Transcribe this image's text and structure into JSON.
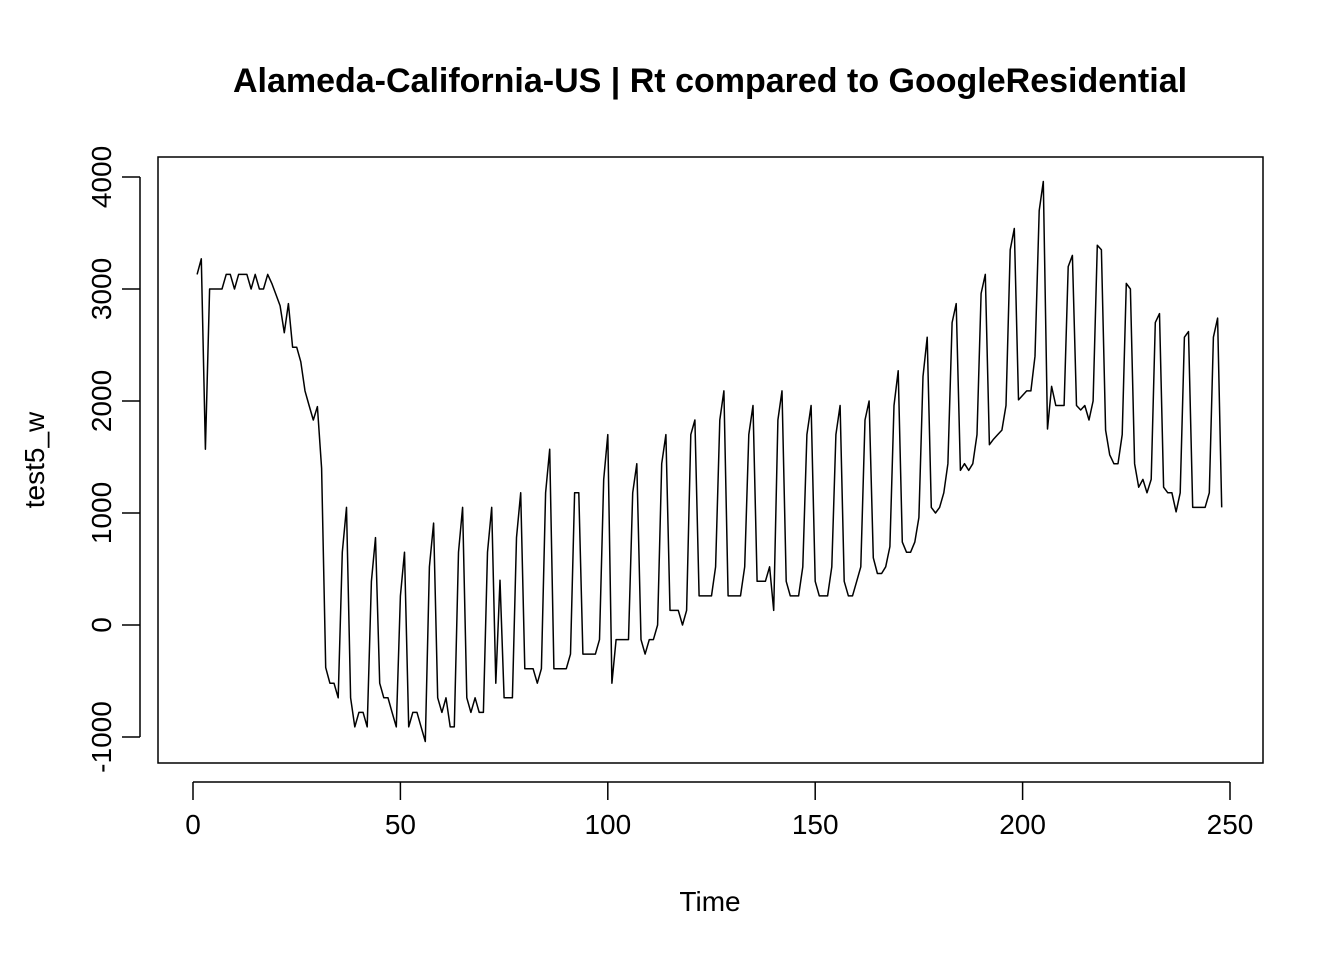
{
  "chart_data": {
    "type": "line",
    "title": "Alameda-California-US | Rt compared to GoogleResidential",
    "xlabel": "Time",
    "ylabel": "test5_w",
    "xlim": [
      0,
      250
    ],
    "ylim": [
      -1000,
      4000
    ],
    "xticks": [
      0,
      50,
      100,
      150,
      200,
      250
    ],
    "yticks": [
      -1000,
      0,
      1000,
      2000,
      3000,
      4000
    ],
    "xtick_labels": [
      "0",
      "50",
      "100",
      "150",
      "200",
      "250"
    ],
    "ytick_labels": [
      "-1000",
      "0",
      "1000",
      "2000",
      "3000",
      "4000"
    ],
    "grid": false,
    "line_color": "#000000",
    "series": [
      {
        "x": [
          1,
          2,
          3,
          4,
          5,
          6,
          7,
          8,
          9,
          10,
          11,
          12,
          13,
          14,
          15,
          16,
          17,
          18,
          19,
          20,
          21,
          22,
          23,
          24,
          25,
          26,
          27,
          28,
          29,
          30,
          31,
          32,
          33,
          34,
          35,
          36,
          37,
          38,
          39,
          40,
          41,
          42,
          43,
          44,
          45,
          46,
          47,
          48,
          49,
          50,
          51,
          52,
          53,
          54,
          55,
          56,
          57,
          58,
          59,
          60,
          61,
          62,
          63,
          64,
          65,
          66,
          67,
          68,
          69,
          70,
          71,
          72,
          73,
          74,
          75,
          76,
          77,
          78,
          79,
          80,
          81,
          82,
          83,
          84,
          85,
          86,
          87,
          88,
          89,
          90,
          91,
          92,
          93,
          94,
          95,
          96,
          97,
          98,
          99,
          100,
          101,
          102,
          103,
          104,
          105,
          106,
          107,
          108,
          109,
          110,
          111,
          112,
          113,
          114,
          115,
          116,
          117,
          118,
          119,
          120,
          121,
          122,
          123,
          124,
          125,
          126,
          127,
          128,
          129,
          130,
          131,
          132,
          133,
          134,
          135,
          136,
          137,
          138,
          139,
          140,
          141,
          142,
          143,
          144,
          145,
          146,
          147,
          148,
          149,
          150,
          151,
          152,
          153,
          154,
          155,
          156,
          157,
          158,
          159,
          160,
          161,
          162,
          163,
          164,
          165,
          166,
          167,
          168,
          169,
          170,
          171,
          172,
          173,
          174,
          175,
          176,
          177,
          178,
          179,
          180,
          181,
          182,
          183,
          184,
          185,
          186,
          187,
          188,
          189,
          190,
          191,
          192,
          193,
          194,
          195,
          196,
          197,
          198,
          199,
          200,
          201,
          202,
          203,
          204,
          205,
          206,
          207,
          208,
          209,
          210,
          211,
          212,
          213,
          214,
          215,
          216,
          217,
          218,
          219,
          220,
          221,
          222,
          223,
          224,
          225,
          226,
          227,
          228,
          229,
          230,
          231,
          232,
          233,
          234,
          235,
          236,
          237,
          238,
          239,
          240,
          241,
          242,
          243,
          244,
          245,
          246,
          247,
          248
        ],
        "values": [
          3130,
          3270,
          1570,
          3000,
          3000,
          3000,
          3000,
          3130,
          3130,
          3000,
          3130,
          3130,
          3130,
          3000,
          3130,
          3000,
          3000,
          3130,
          3050,
          2950,
          2850,
          2610,
          2870,
          2480,
          2480,
          2350,
          2090,
          1960,
          1830,
          1950,
          1400,
          -380,
          -520,
          -520,
          -650,
          650,
          1050,
          -650,
          -910,
          -780,
          -780,
          -910,
          390,
          780,
          -520,
          -650,
          -650,
          -780,
          -910,
          260,
          650,
          -910,
          -780,
          -780,
          -910,
          -1040,
          520,
          910,
          -650,
          -780,
          -650,
          -910,
          -910,
          650,
          1050,
          -650,
          -780,
          -650,
          -780,
          -780,
          650,
          1050,
          -520,
          400,
          -650,
          -650,
          -650,
          780,
          1180,
          -390,
          -390,
          -390,
          -520,
          -390,
          1180,
          1570,
          -390,
          -390,
          -390,
          -390,
          -260,
          1180,
          1180,
          -260,
          -260,
          -260,
          -260,
          -130,
          1300,
          1700,
          -520,
          -130,
          -130,
          -130,
          -130,
          1180,
          1440,
          -130,
          -260,
          -130,
          -130,
          0,
          1440,
          1700,
          130,
          130,
          130,
          0,
          130,
          1700,
          1830,
          260,
          260,
          260,
          260,
          520,
          1830,
          2090,
          260,
          260,
          260,
          260,
          520,
          1700,
          1960,
          390,
          390,
          390,
          520,
          130,
          1830,
          2090,
          390,
          260,
          260,
          260,
          520,
          1700,
          1960,
          390,
          260,
          260,
          260,
          520,
          1700,
          1960,
          390,
          260,
          260,
          390,
          520,
          1830,
          2000,
          600,
          460,
          460,
          520,
          700,
          1960,
          2270,
          740,
          650,
          650,
          740,
          960,
          2220,
          2570,
          1050,
          1000,
          1050,
          1180,
          1440,
          2700,
          2870,
          1380,
          1440,
          1380,
          1440,
          1700,
          2960,
          3130,
          1610,
          1660,
          1700,
          1740,
          1960,
          3350,
          3540,
          2010,
          2050,
          2090,
          2090,
          2400,
          3700,
          3960,
          1750,
          2130,
          1960,
          1960,
          1960,
          3200,
          3300,
          1960,
          1920,
          1960,
          1830,
          2000,
          3390,
          3350,
          1740,
          1520,
          1440,
          1440,
          1700,
          3050,
          3000,
          1440,
          1230,
          1300,
          1180,
          1300,
          2700,
          2780,
          1230,
          1180,
          1180,
          1010,
          1180,
          2570,
          2620,
          1050,
          1050,
          1050,
          1050,
          1180,
          2570,
          2740,
          1050
        ]
      }
    ]
  }
}
